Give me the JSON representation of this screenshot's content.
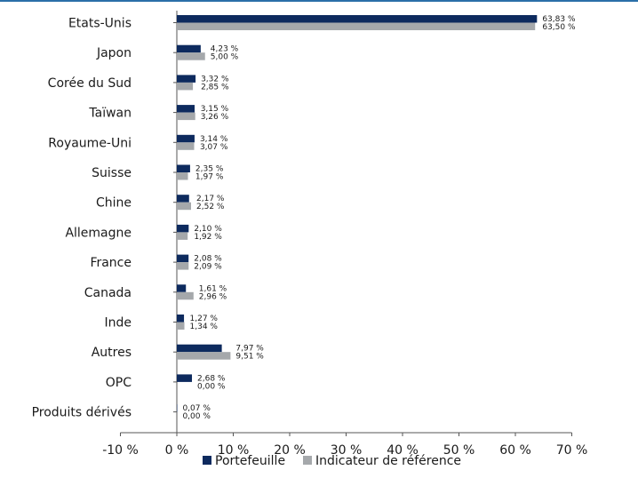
{
  "colors": {
    "portfolio": "#0d2a5e",
    "benchmark": "#a5a8ab",
    "rule": "#2a6fa8",
    "axis": "#555555"
  },
  "chart_data": {
    "type": "bar",
    "orientation": "horizontal",
    "categories": [
      "Etats-Unis",
      "Japon",
      "Corée du Sud",
      "Taïwan",
      "Royaume-Uni",
      "Suisse",
      "Chine",
      "Allemagne",
      "France",
      "Canada",
      "Inde",
      "Autres",
      "OPC",
      "Produits dérivés"
    ],
    "series": [
      {
        "name": "Portefeuille",
        "values": [
          63.83,
          4.23,
          3.32,
          3.15,
          3.14,
          2.35,
          2.17,
          2.1,
          2.08,
          1.61,
          1.27,
          7.97,
          2.68,
          0.07
        ],
        "labels": [
          "63,83 %",
          "4,23 %",
          "3,32 %",
          "3,15 %",
          "3,14 %",
          "2,35 %",
          "2,17 %",
          "2,10 %",
          "2,08 %",
          "1,61 %",
          "1,27 %",
          "7,97 %",
          "2,68 %",
          "0,07 %"
        ]
      },
      {
        "name": "Indicateur de référence",
        "values": [
          63.5,
          5.0,
          2.85,
          3.26,
          3.07,
          1.97,
          2.52,
          1.92,
          2.09,
          2.96,
          1.34,
          9.51,
          0.0,
          0.0
        ],
        "labels": [
          "63,50 %",
          "5,00 %",
          "2,85 %",
          "3,26 %",
          "3,07 %",
          "1,97 %",
          "2,52 %",
          "1,92 %",
          "2,09 %",
          "2,96 %",
          "1,34 %",
          "9,51 %",
          "0,00 %",
          "0,00 %"
        ]
      }
    ],
    "xlim": [
      -10,
      70
    ],
    "xticks": [
      "-10 %",
      "0 %",
      "10 %",
      "20 %",
      "30 %",
      "40 %",
      "50 %",
      "60 %",
      "70 %"
    ],
    "grid": false,
    "legend_position": "bottom"
  }
}
